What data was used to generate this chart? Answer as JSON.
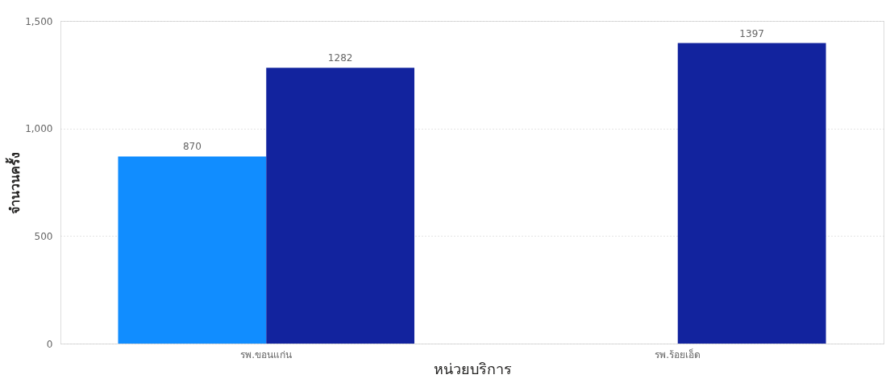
{
  "chart_data": {
    "type": "bar",
    "xlabel": "หน่วยบริการ",
    "ylabel": "จำนวนครั้ง",
    "categories": [
      "รพ.ขอนแก่น",
      "รพ.ร้อยเอ็ด"
    ],
    "series": [
      {
        "color": "#118dff",
        "values": [
          870,
          null
        ]
      },
      {
        "color": "#12239e",
        "values": [
          1282,
          1397
        ]
      }
    ],
    "ylim": [
      0,
      1500
    ],
    "yticks": [
      0,
      500,
      {
        "value": 1000,
        "label": "1,000"
      },
      {
        "value": 1500,
        "label": "1,500"
      }
    ],
    "grid": "y",
    "data_labels": true,
    "legend": false
  }
}
